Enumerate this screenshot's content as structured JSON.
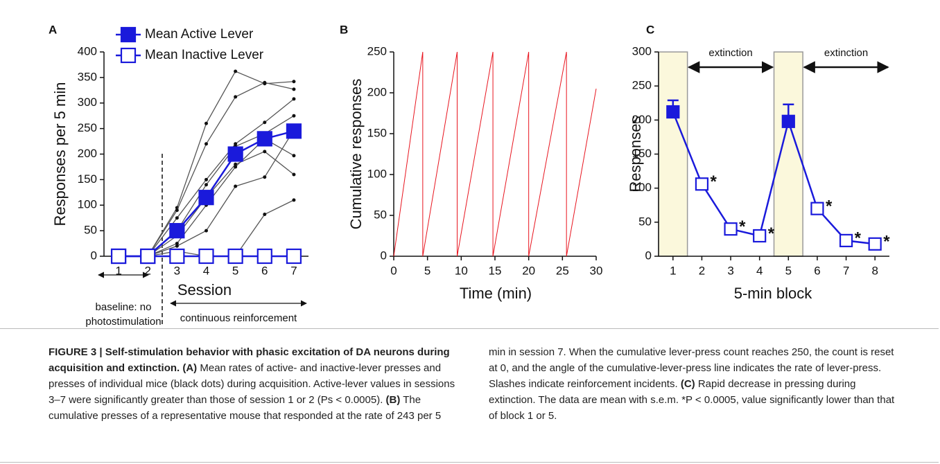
{
  "chart_data": [
    {
      "type": "line",
      "panel": "A",
      "ylabel": "Responses per 5 min",
      "xlabel": "Session",
      "x": [
        1,
        2,
        3,
        4,
        5,
        6,
        7
      ],
      "xlim": [
        0.5,
        7.5
      ],
      "xticks": [
        1,
        2,
        3,
        4,
        5,
        6,
        7
      ],
      "ylim": [
        0,
        400
      ],
      "yticks": [
        0,
        50,
        100,
        150,
        200,
        250,
        300,
        350,
        400
      ],
      "legend": "upper left",
      "series": [
        {
          "name": "Mean Active Lever",
          "color": "#1a1adb",
          "marker": "square",
          "filled": true,
          "values": [
            0,
            0,
            50,
            115,
            200,
            230,
            245
          ]
        },
        {
          "name": "Mean Inactive Lever",
          "color": "#1a1adb",
          "marker": "square",
          "filled": false,
          "values": [
            0,
            0,
            0,
            0,
            0,
            0,
            0
          ]
        }
      ],
      "individual_mice": {
        "color": "#555555",
        "values": [
          [
            0,
            0,
            95,
            260,
            362,
            338,
            342
          ],
          [
            0,
            0,
            90,
            220,
            312,
            340,
            327
          ],
          [
            0,
            0,
            75,
            150,
            220,
            262,
            308
          ],
          [
            0,
            0,
            50,
            140,
            215,
            240,
            275
          ],
          [
            0,
            0,
            40,
            115,
            180,
            205,
            160
          ],
          [
            0,
            0,
            25,
            100,
            175,
            230,
            197
          ],
          [
            0,
            0,
            10,
            0,
            0,
            82,
            110
          ],
          [
            0,
            0,
            20,
            50,
            137,
            155,
            247
          ]
        ]
      },
      "annotations": [
        "baseline: no",
        "photostimulation",
        "continuous reinforcement"
      ]
    },
    {
      "type": "line",
      "panel": "B",
      "ylabel": "Cumulative responses",
      "xlabel": "Time (min)",
      "x": [
        0,
        4.3,
        4.3,
        9.4,
        9.4,
        14.7,
        14.7,
        20.0,
        20.0,
        25.6,
        25.6,
        30
      ],
      "xlim": [
        0,
        30
      ],
      "xticks": [
        0,
        5,
        10,
        15,
        20,
        25,
        30
      ],
      "ylim": [
        0,
        250
      ],
      "yticks": [
        0,
        50,
        100,
        150,
        200,
        250
      ],
      "series": [
        {
          "color": "#e8141e",
          "values": [
            0,
            250,
            0,
            250,
            0,
            250,
            0,
            250,
            0,
            250,
            0,
            205
          ]
        }
      ]
    },
    {
      "type": "line",
      "panel": "C",
      "ylabel": "Responses",
      "xlabel": "5-min block",
      "x": [
        1,
        2,
        3,
        4,
        5,
        6,
        7,
        8
      ],
      "xlim": [
        0.5,
        8.5
      ],
      "xticks": [
        1,
        2,
        3,
        4,
        5,
        6,
        7,
        8
      ],
      "ylim": [
        0,
        300
      ],
      "yticks": [
        0,
        50,
        100,
        150,
        200,
        250,
        300
      ],
      "series": [
        {
          "color": "#1a1adb",
          "marker": "square",
          "filled": [
            true,
            false,
            false,
            false,
            true,
            false,
            false,
            false
          ],
          "values": [
            212,
            106,
            40,
            30,
            198,
            70,
            23,
            18
          ],
          "errors": [
            17,
            null,
            null,
            null,
            25,
            null,
            null,
            null
          ]
        }
      ],
      "shaded_blocks": [
        1,
        5
      ],
      "shade_color": "#fbf8dc",
      "extinction_label": "extinction",
      "extinction_spans": [
        [
          1.5,
          4.5
        ],
        [
          5.5,
          8.5
        ]
      ],
      "asterisk": "*",
      "asterisk_blocks": [
        2,
        3,
        4,
        6,
        7,
        8
      ]
    }
  ],
  "caption": {
    "title": "FIGURE 3 | Self-stimulation behavior with phasic excitation of DA neurons during acquisition and extinction.",
    "a_label": "(A)",
    "a_text": "Mean rates of active- and inactive-lever presses and presses of individual mice (black dots) during acquisition. Active-lever values in sessions 3–7 were significantly greater than those of session 1 or 2 (Ps < 0.0005).",
    "b_label": "(B)",
    "b_text": "The cumulative presses of a representative mouse that responded at the rate of 243 per 5 min in session 7. When the cumulative lever-press count reaches 250, the count is reset at 0, and the angle of the cumulative-lever-press line indicates the rate of lever-press. Slashes indicate reinforcement incidents.",
    "c_label": "(C)",
    "c_text": "Rapid decrease in pressing during extinction. The data are mean with s.e.m. *P < 0.0005, value significantly lower than that of block 1 or 5."
  }
}
